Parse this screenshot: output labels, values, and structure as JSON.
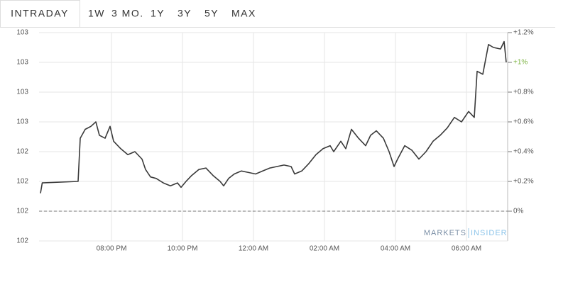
{
  "tabs": [
    "INTRADAY",
    "1W",
    "3 MO.",
    "1Y",
    "3Y",
    "5Y",
    "MAX"
  ],
  "active_tab": "INTRADAY",
  "logo": {
    "left": "MARKETS",
    "right": "INSIDER"
  },
  "chart_data": {
    "type": "line",
    "xlim": [
      17.96,
      31.16
    ],
    "xticks": [
      {
        "value": 20,
        "label": "08:00 PM"
      },
      {
        "value": 22,
        "label": "10:00 PM"
      },
      {
        "value": 24,
        "label": "12:00 AM"
      },
      {
        "value": 26,
        "label": "02:00 AM"
      },
      {
        "value": 28,
        "label": "04:00 AM"
      },
      {
        "value": 30,
        "label": "06:00 AM"
      }
    ],
    "ylim": [
      101.8,
      103.2
    ],
    "yticks": [
      {
        "value": 101.8,
        "label": "102"
      },
      {
        "value": 102,
        "label": "102"
      },
      {
        "value": 102.2,
        "label": "102"
      },
      {
        "value": 102.4,
        "label": "102"
      },
      {
        "value": 102.6,
        "label": "103"
      },
      {
        "value": 102.8,
        "label": "103"
      },
      {
        "value": 103,
        "label": "103"
      },
      {
        "value": 103.2,
        "label": "103"
      }
    ],
    "y2lim": [
      -0.2,
      1.2
    ],
    "y2ticks": [
      {
        "value": 0,
        "label": "0%",
        "dashed": true
      },
      {
        "value": 0.2,
        "label": "+0.2%"
      },
      {
        "value": 0.4,
        "label": "+0.4%"
      },
      {
        "value": 0.6,
        "label": "+0.6%"
      },
      {
        "value": 0.8,
        "label": "+0.8%"
      },
      {
        "value": 1,
        "label": "+1%",
        "color": "#7cb342"
      },
      {
        "value": 1.2,
        "label": "+1.2%"
      }
    ],
    "grid": true,
    "series": [
      {
        "color": "#3a3a3a",
        "axis": "y2",
        "x": [
          18.0,
          18.05,
          19.06,
          19.12,
          19.26,
          19.42,
          19.56,
          19.66,
          19.82,
          19.96,
          20.06,
          20.26,
          20.46,
          20.66,
          20.86,
          20.96,
          21.1,
          21.26,
          21.46,
          21.66,
          21.86,
          21.96,
          22.1,
          22.26,
          22.46,
          22.66,
          22.86,
          23.06,
          23.16,
          23.3,
          23.46,
          23.66,
          23.86,
          24.06,
          24.26,
          24.46,
          24.66,
          24.86,
          25.06,
          25.16,
          25.36,
          25.56,
          25.76,
          25.96,
          26.16,
          26.26,
          26.46,
          26.6,
          26.76,
          26.96,
          27.16,
          27.3,
          27.46,
          27.66,
          27.82,
          27.96,
          28.06,
          28.26,
          28.46,
          28.66,
          28.86,
          29.06,
          29.26,
          29.46,
          29.66,
          29.86,
          30.06,
          30.22,
          30.3,
          30.46,
          30.62,
          30.76,
          30.96,
          31.06,
          31.12
        ],
        "values": [
          0.12,
          0.19,
          0.2,
          0.49,
          0.55,
          0.57,
          0.6,
          0.51,
          0.49,
          0.57,
          0.47,
          0.42,
          0.38,
          0.4,
          0.35,
          0.28,
          0.23,
          0.22,
          0.19,
          0.17,
          0.19,
          0.16,
          0.2,
          0.24,
          0.28,
          0.29,
          0.24,
          0.2,
          0.17,
          0.22,
          0.25,
          0.27,
          0.26,
          0.25,
          0.27,
          0.29,
          0.3,
          0.31,
          0.3,
          0.25,
          0.27,
          0.32,
          0.38,
          0.42,
          0.44,
          0.4,
          0.47,
          0.42,
          0.55,
          0.49,
          0.44,
          0.51,
          0.54,
          0.49,
          0.4,
          0.3,
          0.35,
          0.44,
          0.41,
          0.35,
          0.4,
          0.47,
          0.51,
          0.56,
          0.63,
          0.6,
          0.67,
          0.63,
          0.94,
          0.92,
          1.12,
          1.1,
          1.09,
          1.14,
          1.0
        ]
      }
    ]
  }
}
